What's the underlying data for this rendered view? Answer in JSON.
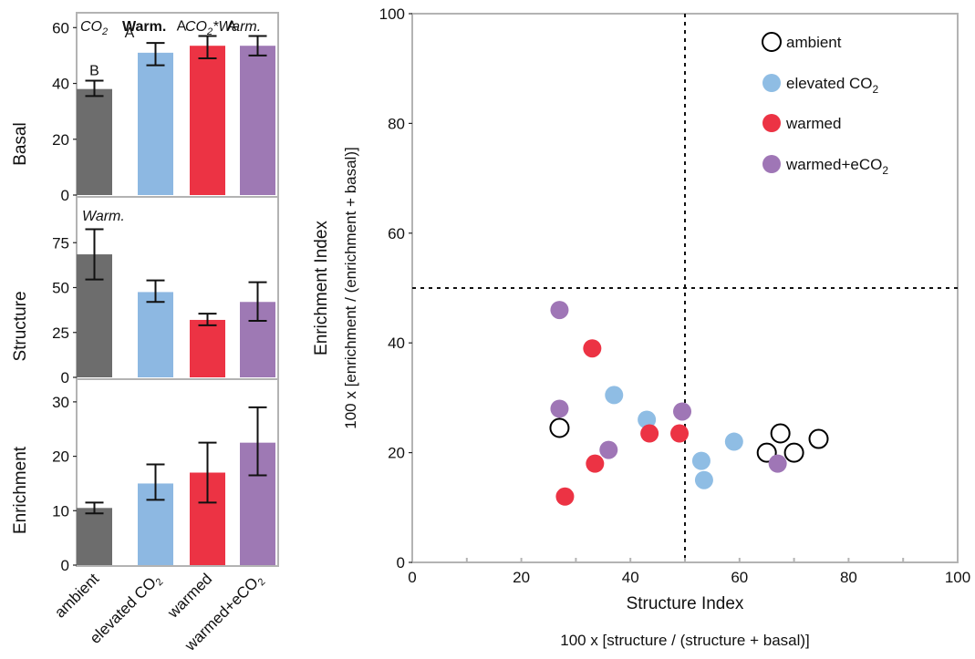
{
  "colors": {
    "ambient": "#6d6d6d",
    "elevated": "#8db8e2",
    "warmed": "#ec3344",
    "warmed_eco2": "#9e79b4",
    "elevated_point": "#8fbde4",
    "warmed_eco2_point": "#9f76b6",
    "frame": "#b3b3b3"
  },
  "chart_data": [
    {
      "type": "bar",
      "panel": "basal",
      "ylabel": "Basal",
      "categories": [
        "ambient",
        "elevated CO2",
        "warmed",
        "warmed+eCO2"
      ],
      "values": [
        38,
        51,
        53.5,
        53.5
      ],
      "errors": [
        [
          35.5,
          41
        ],
        [
          46.5,
          54.5
        ],
        [
          49,
          57
        ],
        [
          50,
          57
        ]
      ],
      "letters": [
        "B",
        "A",
        "A",
        "A"
      ],
      "annotations": [
        {
          "pre": "CO",
          "sub": "2",
          "post": "",
          "style": "italic"
        },
        {
          "pre": "Warm.",
          "sub": "",
          "post": "",
          "style": "bold"
        },
        {
          "pre": "CO",
          "sub": "2",
          "post": "*Warm.",
          "style": "italic"
        }
      ],
      "ylim": [
        0,
        65
      ],
      "yticks": [
        0,
        20,
        40,
        60
      ]
    },
    {
      "type": "bar",
      "panel": "structure",
      "ylabel": "Structure",
      "categories": [
        "ambient",
        "elevated CO2",
        "warmed",
        "warmed+eCO2"
      ],
      "values": [
        68.5,
        47.5,
        32,
        42
      ],
      "errors": [
        [
          54.5,
          82.5
        ],
        [
          42,
          54
        ],
        [
          29,
          35.5
        ],
        [
          31.5,
          53
        ]
      ],
      "annotations": [
        {
          "pre": "Warm.",
          "sub": "",
          "post": "",
          "style": "italic"
        }
      ],
      "ylim": [
        0,
        100
      ],
      "yticks": [
        0,
        25,
        50,
        75
      ]
    },
    {
      "type": "bar",
      "panel": "enrichment",
      "ylabel": "Enrichment",
      "categories": [
        "ambient",
        "elevated CO2",
        "warmed",
        "warmed+eCO2"
      ],
      "values": [
        10.5,
        15,
        17,
        22.5
      ],
      "errors": [
        [
          9.5,
          11.5
        ],
        [
          12,
          18.5
        ],
        [
          11.5,
          22.5
        ],
        [
          16.5,
          29
        ]
      ],
      "ylim": [
        0,
        34
      ],
      "yticks": [
        0,
        10,
        20,
        30
      ]
    },
    {
      "type": "scatter",
      "panel": "food-web",
      "xlabel": "Structure Index",
      "xlabel2": "100 x [structure / (structure + basal)]",
      "ylabel": "Enrichment Index",
      "ylabel2": "100 x [enrichment / (enrichment + basal)]",
      "xlim": [
        0,
        100
      ],
      "ylim": [
        0,
        100
      ],
      "xticks": [
        0,
        20,
        40,
        60,
        80,
        100
      ],
      "yticks": [
        0,
        20,
        40,
        60,
        80,
        100
      ],
      "reference_lines": {
        "x": 50,
        "y": 50
      },
      "legend_position": "top-right",
      "series": [
        {
          "name": "ambient",
          "legend_pre": "ambient",
          "legend_sub": "",
          "legend_post": "",
          "style": "open",
          "points": [
            [
              27,
              24.5
            ],
            [
              65,
              20
            ],
            [
              67.5,
              23.5
            ],
            [
              70,
              20
            ],
            [
              74.5,
              22.5
            ]
          ]
        },
        {
          "name": "elevated CO2",
          "legend_pre": "elevated CO",
          "legend_sub": "2",
          "legend_post": "",
          "style": "filled",
          "points": [
            [
              37,
              30.5
            ],
            [
              43,
              26
            ],
            [
              53,
              18.5
            ],
            [
              53.5,
              15
            ],
            [
              59,
              22
            ]
          ]
        },
        {
          "name": "warmed",
          "legend_pre": "warmed",
          "legend_sub": "",
          "legend_post": "",
          "style": "filled",
          "points": [
            [
              33,
              39
            ],
            [
              28,
              12
            ],
            [
              33.5,
              18
            ],
            [
              43.5,
              23.5
            ],
            [
              49,
              23.5
            ]
          ]
        },
        {
          "name": "warmed+eCO2",
          "legend_pre": "warmed+eCO",
          "legend_sub": "2",
          "legend_post": "",
          "style": "filled",
          "points": [
            [
              27,
              46
            ],
            [
              27,
              28
            ],
            [
              36,
              20.5
            ],
            [
              49.5,
              27.5
            ],
            [
              67,
              18
            ]
          ]
        }
      ]
    }
  ]
}
